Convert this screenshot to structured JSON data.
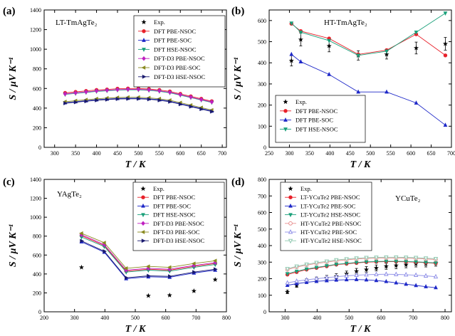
{
  "chart_data": [
    {
      "type": "line",
      "panel_label": "(a)",
      "compound": "LT-TmAgTe₂",
      "xlabel": "T / K",
      "ylabel": "S / µV K⁻¹",
      "xlim": [
        275,
        710
      ],
      "ylim": [
        0,
        1400
      ],
      "xticks": [
        300,
        350,
        400,
        450,
        500,
        550,
        600,
        650,
        700
      ],
      "yticks": [
        0,
        200,
        400,
        600,
        800,
        1000,
        1200,
        1400
      ],
      "legend_position": "top-right",
      "series": [
        {
          "name": "Exp.",
          "color": "#000000",
          "marker": "star",
          "line": false,
          "x": [],
          "y": []
        },
        {
          "name": "DFT PBE-NSOC",
          "color": "#e8202a",
          "marker": "circle",
          "x": [
            325,
            350,
            375,
            400,
            425,
            450,
            475,
            500,
            525,
            550,
            575,
            600,
            625,
            650,
            675
          ],
          "y": [
            555,
            565,
            575,
            585,
            590,
            598,
            600,
            600,
            595,
            585,
            570,
            545,
            520,
            495,
            470
          ]
        },
        {
          "name": "DFT PBE-SOC",
          "color": "#1e28c8",
          "marker": "triangle",
          "x": [
            325,
            350,
            375,
            400,
            425,
            450,
            475,
            500,
            525,
            550,
            575,
            600,
            625,
            650,
            675
          ],
          "y": [
            455,
            465,
            475,
            485,
            492,
            498,
            500,
            500,
            495,
            485,
            470,
            445,
            420,
            395,
            370
          ]
        },
        {
          "name": "DFT HSE-NSOC",
          "color": "#1aa07a",
          "marker": "triangle-down",
          "x": [
            325,
            350,
            375,
            400,
            425,
            450,
            475,
            500,
            525,
            550,
            575,
            600,
            625,
            650,
            675
          ],
          "y": [
            540,
            550,
            560,
            570,
            577,
            583,
            586,
            586,
            581,
            571,
            556,
            532,
            507,
            482,
            458
          ]
        },
        {
          "name": "DFT-D3 PBE-NSOC",
          "color": "#c020c0",
          "marker": "diamond",
          "x": [
            325,
            350,
            375,
            400,
            425,
            450,
            475,
            500,
            525,
            550,
            575,
            600,
            625,
            650,
            675
          ],
          "y": [
            545,
            555,
            565,
            575,
            582,
            588,
            591,
            591,
            586,
            576,
            561,
            537,
            512,
            487,
            463
          ]
        },
        {
          "name": "DFT-D3 PBE-SOC",
          "color": "#8a8a20",
          "marker": "triangle-left",
          "x": [
            325,
            350,
            375,
            400,
            425,
            450,
            475,
            500,
            525,
            550,
            575,
            600,
            625,
            650,
            675
          ],
          "y": [
            465,
            475,
            485,
            495,
            502,
            508,
            510,
            510,
            505,
            495,
            480,
            455,
            430,
            405,
            380
          ]
        },
        {
          "name": "DFT-D3 HSE-NSOC",
          "color": "#1a1a6e",
          "marker": "triangle-right",
          "x": [
            325,
            350,
            375,
            400,
            425,
            450,
            475,
            500,
            525,
            550,
            575,
            600,
            625,
            650,
            675
          ],
          "y": [
            450,
            460,
            470,
            480,
            487,
            493,
            495,
            495,
            490,
            480,
            465,
            440,
            415,
            390,
            365
          ]
        }
      ]
    },
    {
      "type": "line",
      "panel_label": "(b)",
      "compound": "HT-TmAgTe₂",
      "xlabel": "T / K",
      "ylabel": "S / µV K⁻¹",
      "xlim": [
        250,
        700
      ],
      "ylim": [
        0,
        650
      ],
      "xticks": [
        250,
        300,
        350,
        400,
        450,
        500,
        550,
        600,
        650,
        700
      ],
      "yticks": [
        0,
        100,
        200,
        300,
        400,
        500,
        600
      ],
      "legend_position": "bottom-left",
      "series": [
        {
          "name": "Exp.",
          "color": "#000000",
          "marker": "star",
          "line": false,
          "x": [
            305,
            328,
            398,
            470,
            540,
            613,
            685
          ],
          "y": [
            410,
            510,
            480,
            435,
            440,
            470,
            490
          ],
          "err": [
            25,
            30,
            28,
            22,
            22,
            28,
            30
          ]
        },
        {
          "name": "DFT PBE-NSOC",
          "color": "#e8202a",
          "marker": "circle",
          "x": [
            305,
            328,
            398,
            470,
            540,
            613,
            685
          ],
          "y": [
            585,
            550,
            515,
            440,
            460,
            535,
            435
          ]
        },
        {
          "name": "DFT PBE-SOC",
          "color": "#1e28c8",
          "marker": "triangle",
          "x": [
            305,
            328,
            398,
            470,
            540,
            613,
            685
          ],
          "y": [
            440,
            405,
            345,
            262,
            262,
            210,
            105
          ]
        },
        {
          "name": "DFT HSE-NSOC",
          "color": "#1aa07a",
          "marker": "triangle-down",
          "x": [
            305,
            328,
            398,
            470,
            540,
            613,
            685
          ],
          "y": [
            588,
            545,
            505,
            435,
            455,
            545,
            635
          ]
        }
      ]
    },
    {
      "type": "line",
      "panel_label": "(c)",
      "compound": "YAgTe₂",
      "xlabel": "T / K",
      "ylabel": "S / µV K⁻¹",
      "xlim": [
        200,
        800
      ],
      "ylim": [
        0,
        1400
      ],
      "xticks": [
        200,
        300,
        400,
        500,
        600,
        700,
        800
      ],
      "yticks": [
        0,
        200,
        400,
        600,
        800,
        1000,
        1200,
        1400
      ],
      "legend_position": "top-right",
      "series": [
        {
          "name": "Exp.",
          "color": "#000000",
          "marker": "star",
          "line": false,
          "x": [
            323,
            543,
            613,
            693,
            763
          ],
          "y": [
            470,
            170,
            175,
            220,
            340
          ]
        },
        {
          "name": "DFT PBE-NSOC",
          "color": "#e8202a",
          "marker": "circle",
          "x": [
            323,
            398,
            470,
            543,
            613,
            693,
            763
          ],
          "y": [
            805,
            700,
            430,
            450,
            440,
            480,
            510
          ]
        },
        {
          "name": "DFT PBE-SOC",
          "color": "#1e28c8",
          "marker": "triangle",
          "x": [
            323,
            398,
            470,
            543,
            613,
            693,
            763
          ],
          "y": [
            740,
            630,
            350,
            370,
            365,
            410,
            440
          ]
        },
        {
          "name": "DFT HSE-NSOC",
          "color": "#1aa07a",
          "marker": "triangle-down",
          "x": [
            323,
            398,
            470,
            543,
            613,
            693,
            763
          ],
          "y": [
            790,
            690,
            420,
            440,
            430,
            470,
            500
          ]
        },
        {
          "name": "DFT-D3 PBE-NSOC",
          "color": "#c020c0",
          "marker": "diamond",
          "x": [
            323,
            398,
            470,
            543,
            613,
            693,
            763
          ],
          "y": [
            815,
            710,
            440,
            460,
            450,
            490,
            520
          ]
        },
        {
          "name": "DFT-D3 PBE-SOC",
          "color": "#8a8a20",
          "marker": "triangle-left",
          "x": [
            323,
            398,
            470,
            543,
            613,
            693,
            763
          ],
          "y": [
            830,
            730,
            460,
            480,
            470,
            510,
            540
          ]
        },
        {
          "name": "DFT-D3 HSE-NSOC",
          "color": "#1a1a6e",
          "marker": "triangle-right",
          "x": [
            323,
            398,
            470,
            543,
            613,
            693,
            763
          ],
          "y": [
            750,
            640,
            360,
            380,
            375,
            420,
            450
          ]
        }
      ]
    },
    {
      "type": "line",
      "panel_label": "(d)",
      "compound": "YCuTe₂",
      "xlabel": "T / K",
      "ylabel": "S / µV K⁻¹",
      "xlim": [
        250,
        820
      ],
      "ylim": [
        0,
        800
      ],
      "xticks": [
        300,
        400,
        500,
        600,
        700,
        800
      ],
      "yticks": [
        0,
        100,
        200,
        300,
        400,
        500,
        600,
        700,
        800
      ],
      "legend_position": "top-left",
      "series": [
        {
          "name": "Exp.",
          "color": "#000000",
          "marker": "star",
          "line": false,
          "x": [
            307,
            336,
            367,
            398,
            430,
            460,
            492,
            523,
            554,
            585,
            616,
            647,
            678,
            709,
            740,
            771
          ],
          "y": [
            120,
            160,
            185,
            195,
            205,
            215,
            230,
            245,
            255,
            265,
            275,
            280,
            285,
            290,
            290,
            295
          ],
          "err": [
            10,
            12,
            14,
            15,
            15,
            15,
            16,
            17,
            18,
            18,
            18,
            19,
            19,
            19,
            19,
            19
          ]
        },
        {
          "name": "LT-YCuTe2 PBE-NSOC",
          "color": "#e8202a",
          "marker": "circle",
          "x": [
            307,
            336,
            367,
            398,
            430,
            460,
            492,
            523,
            554,
            585,
            616,
            647,
            678,
            709,
            740,
            771
          ],
          "y": [
            225,
            240,
            255,
            265,
            275,
            285,
            290,
            295,
            300,
            302,
            303,
            303,
            302,
            300,
            297,
            293
          ]
        },
        {
          "name": "LT-YCuTe2 PBE-SOC",
          "color": "#1e28c8",
          "marker": "triangle",
          "x": [
            307,
            336,
            367,
            398,
            430,
            460,
            492,
            523,
            554,
            585,
            616,
            647,
            678,
            709,
            740,
            771
          ],
          "y": [
            160,
            170,
            178,
            184,
            188,
            192,
            194,
            195,
            193,
            189,
            183,
            175,
            167,
            159,
            152,
            146
          ]
        },
        {
          "name": "LT-YCuTe2 HSE-NSOC",
          "color": "#1aa07a",
          "marker": "triangle-down",
          "x": [
            307,
            336,
            367,
            398,
            430,
            460,
            492,
            523,
            554,
            585,
            616,
            647,
            678,
            709,
            740,
            771
          ],
          "y": [
            230,
            245,
            258,
            268,
            278,
            287,
            293,
            298,
            302,
            304,
            305,
            305,
            304,
            302,
            299,
            295
          ]
        },
        {
          "name": "HT-YCuTe2 PBE-NSOC",
          "color": "#e89090",
          "marker": "circle-open",
          "x": [
            307,
            336,
            367,
            398,
            430,
            460,
            492,
            523,
            554,
            585,
            616,
            647,
            678,
            709,
            740,
            771
          ],
          "y": [
            255,
            270,
            282,
            292,
            300,
            308,
            314,
            319,
            322,
            324,
            325,
            325,
            324,
            322,
            319,
            316
          ]
        },
        {
          "name": "HT-YCuTe2 PBE-SOC",
          "color": "#9090e8",
          "marker": "triangle-open",
          "x": [
            307,
            336,
            367,
            398,
            430,
            460,
            492,
            523,
            554,
            585,
            616,
            647,
            678,
            709,
            740,
            771
          ],
          "y": [
            175,
            185,
            193,
            200,
            206,
            212,
            217,
            221,
            224,
            226,
            227,
            226,
            224,
            221,
            217,
            212
          ]
        },
        {
          "name": "HT-YCuTe2 HSE-NSOC",
          "color": "#90c8b0",
          "marker": "triangle-down-open",
          "x": [
            307,
            336,
            367,
            398,
            430,
            460,
            492,
            523,
            554,
            585,
            616,
            647,
            678,
            709,
            740,
            771
          ],
          "y": [
            260,
            275,
            287,
            297,
            305,
            313,
            319,
            324,
            327,
            329,
            330,
            330,
            329,
            327,
            324,
            321
          ]
        }
      ]
    }
  ]
}
